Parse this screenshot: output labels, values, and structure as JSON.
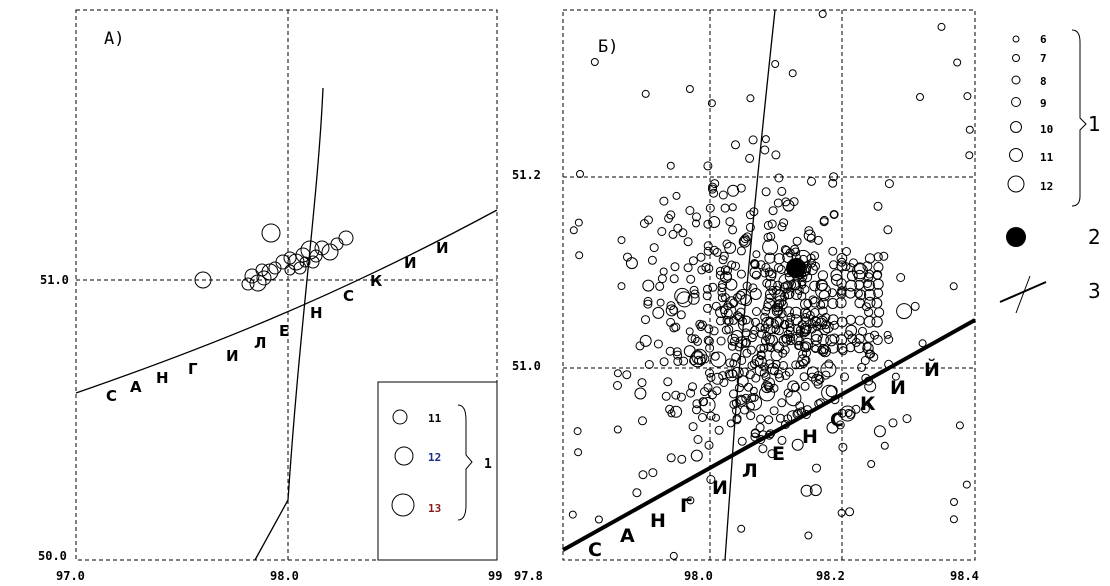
{
  "panelA": {
    "label": "А)",
    "x_ticks": [
      "97.0",
      "98.0",
      "99"
    ],
    "y_ticks": [
      "51.0",
      "50.0"
    ],
    "fault_letters": [
      "С",
      "А",
      "Н",
      "Г",
      "И",
      "Л",
      "Е",
      "Н",
      "С",
      "К",
      "И",
      "И"
    ],
    "legend": {
      "items": [
        "11",
        "12",
        "13"
      ],
      "group_label": "1"
    }
  },
  "panelB": {
    "label": "Б)",
    "x_ticks": [
      "97.8",
      "98.0",
      "98.2",
      "98.4"
    ],
    "y_ticks": [
      "51.2",
      "51.0"
    ],
    "fault_letters": [
      "С",
      "А",
      "Н",
      "Г",
      "И",
      "Л",
      "Е",
      "Н",
      "С",
      "К",
      "И",
      "Й"
    ]
  },
  "legend": {
    "magnitudes": [
      "6",
      "7",
      "8",
      "9",
      "10",
      "11",
      "12"
    ],
    "group1_label": "1",
    "item2_label": "2",
    "item3_label": "3"
  },
  "colors": {
    "ink": "#000000",
    "tick_blue": "#1a2a8a",
    "tick_red": "#8a1a1a"
  }
}
